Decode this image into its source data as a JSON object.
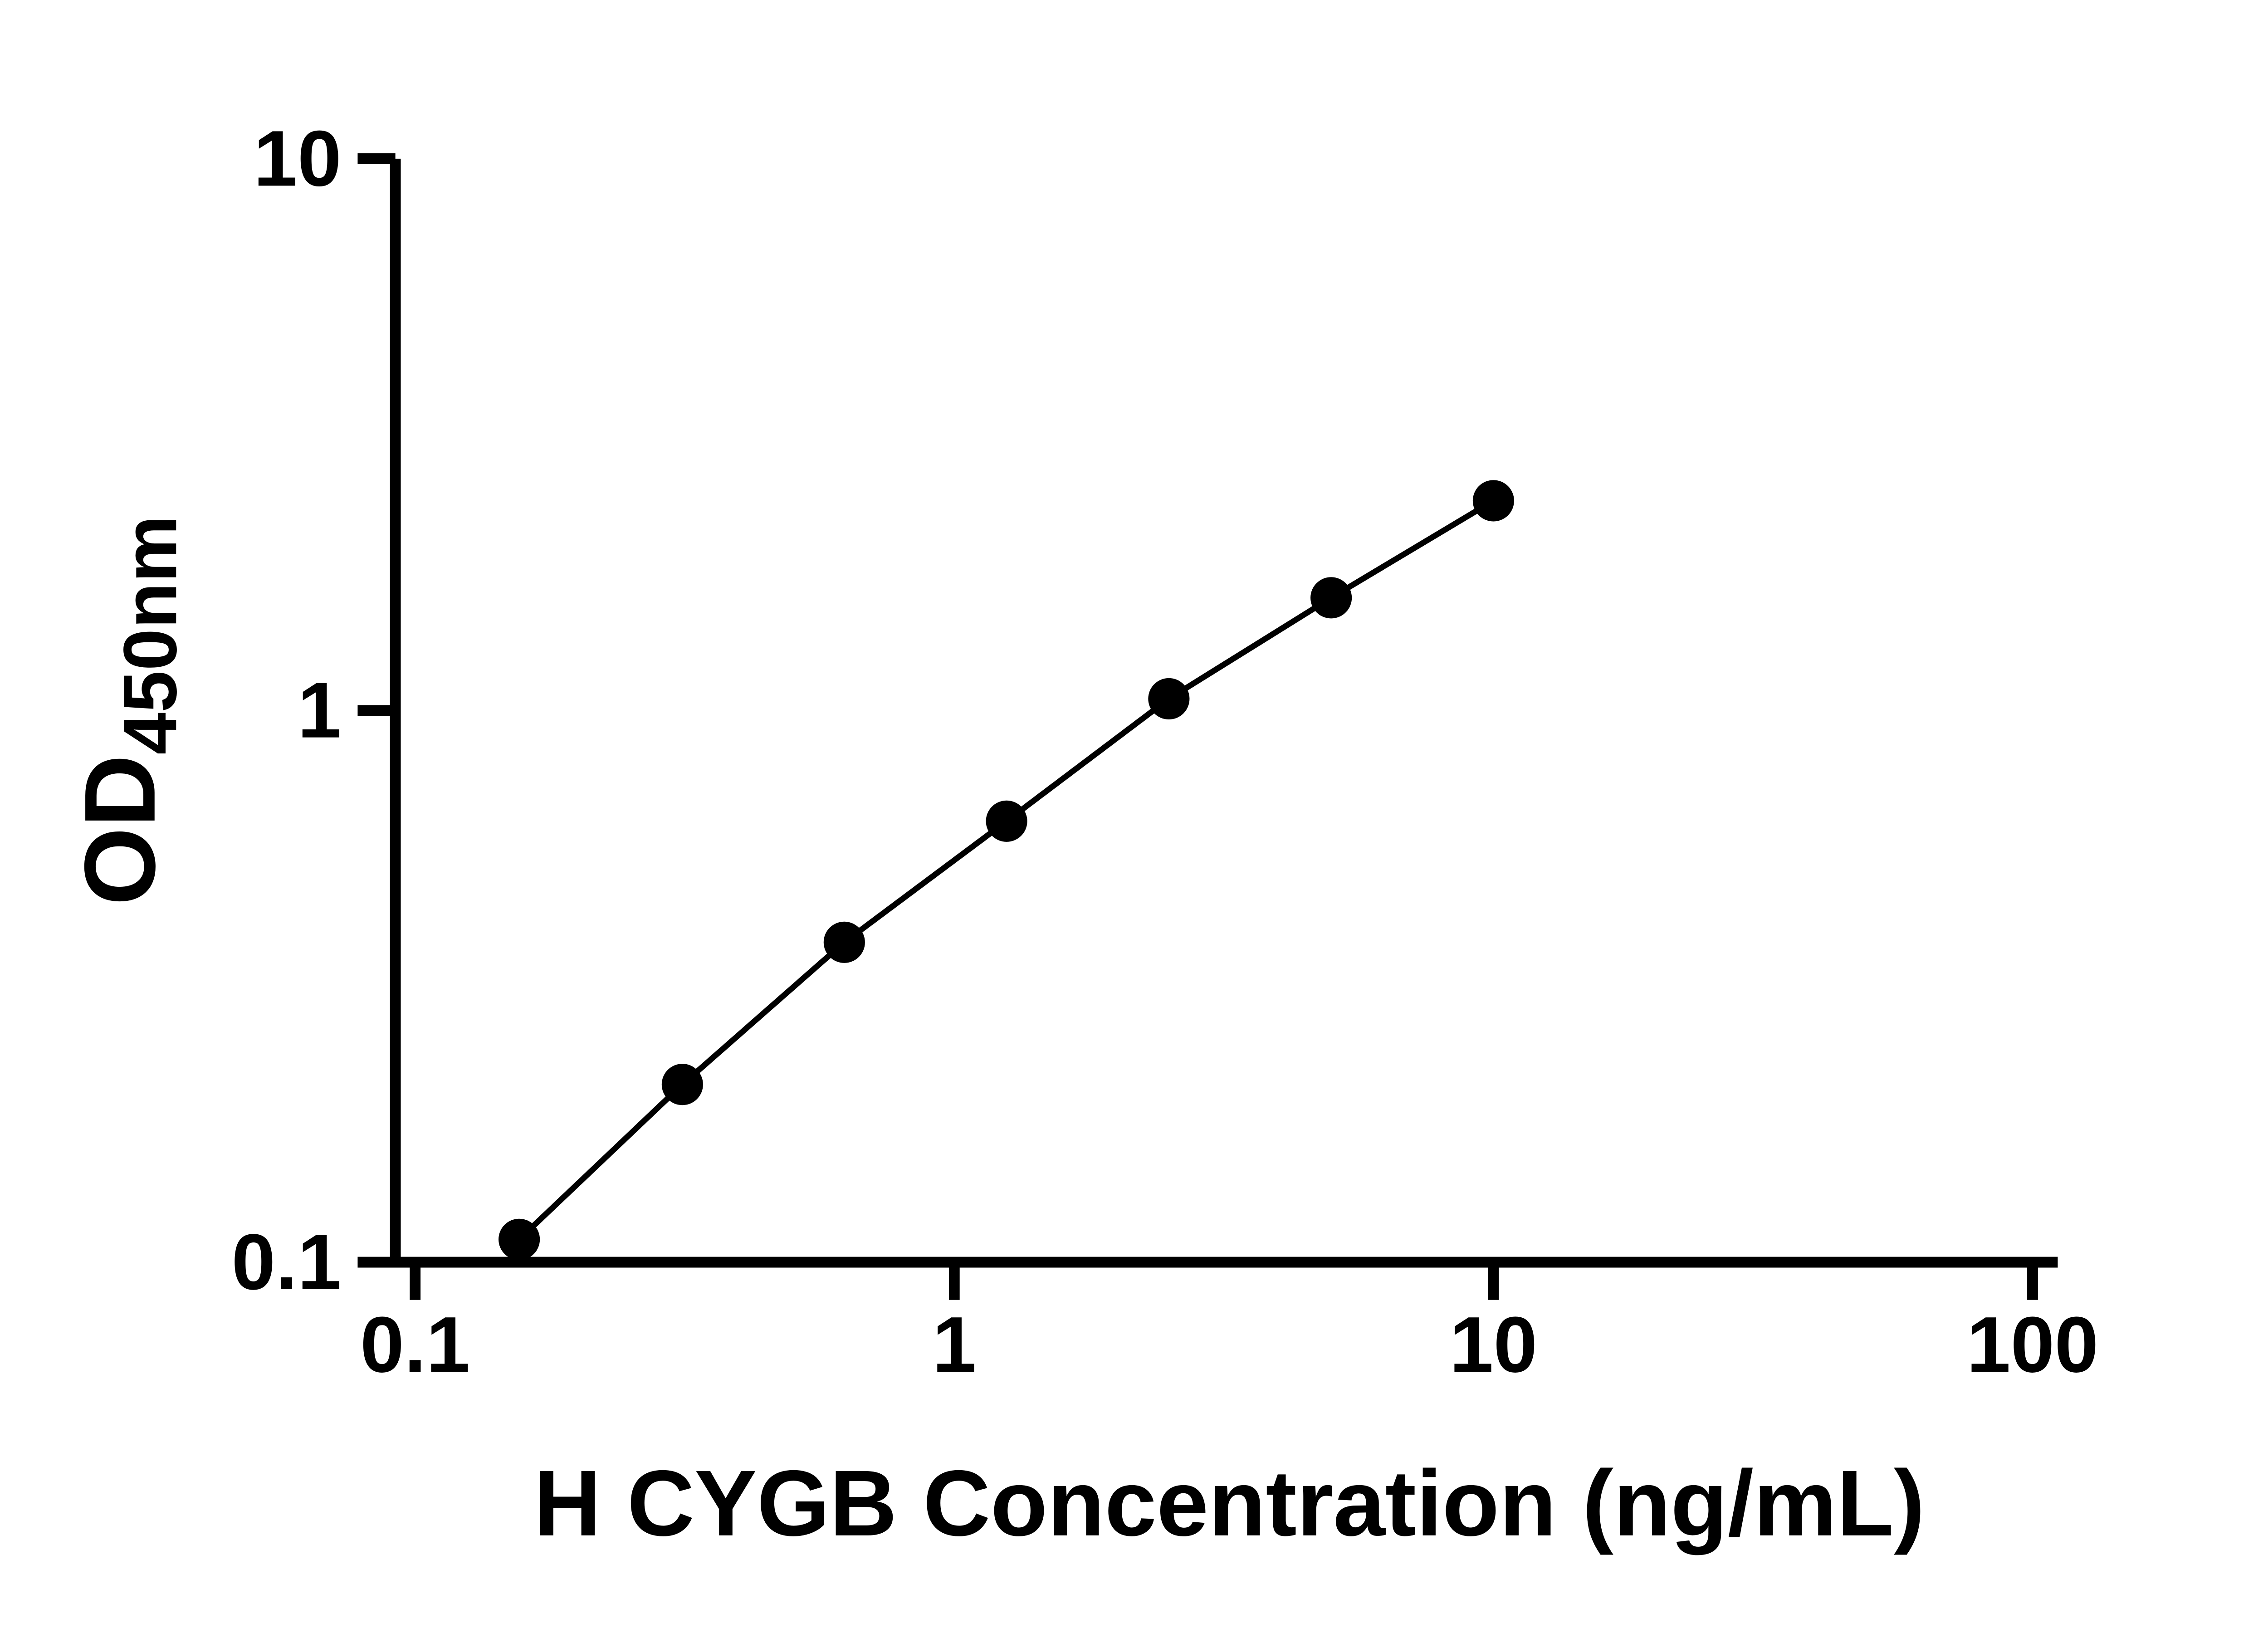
{
  "chart_data": {
    "type": "scatter",
    "title": "",
    "xlabel": "H CYGB Concentration (ng/mL)",
    "ylabel_main": "OD",
    "ylabel_sub": "450nm",
    "x_scale": "log",
    "y_scale": "log",
    "xlim": [
      0.1,
      100
    ],
    "ylim": [
      0.1,
      10
    ],
    "x_ticks": [
      0.1,
      1,
      10,
      100
    ],
    "x_tick_labels": [
      "0.1",
      "1",
      "10",
      "100"
    ],
    "y_ticks": [
      0.1,
      1,
      10
    ],
    "y_tick_labels": [
      "0.1",
      "1",
      "10"
    ],
    "grid": false,
    "legend_position": "none",
    "colors": {
      "axis": "#000000",
      "marker": "#000000",
      "line": "#000000",
      "background": "#ffffff"
    },
    "series": [
      {
        "name": "",
        "marker": "circle",
        "line": true,
        "color": "#000000",
        "x": [
          0.156,
          0.313,
          0.625,
          1.25,
          2.5,
          5,
          10
        ],
        "y": [
          0.11,
          0.21,
          0.38,
          0.63,
          1.05,
          1.6,
          2.4
        ]
      }
    ]
  }
}
